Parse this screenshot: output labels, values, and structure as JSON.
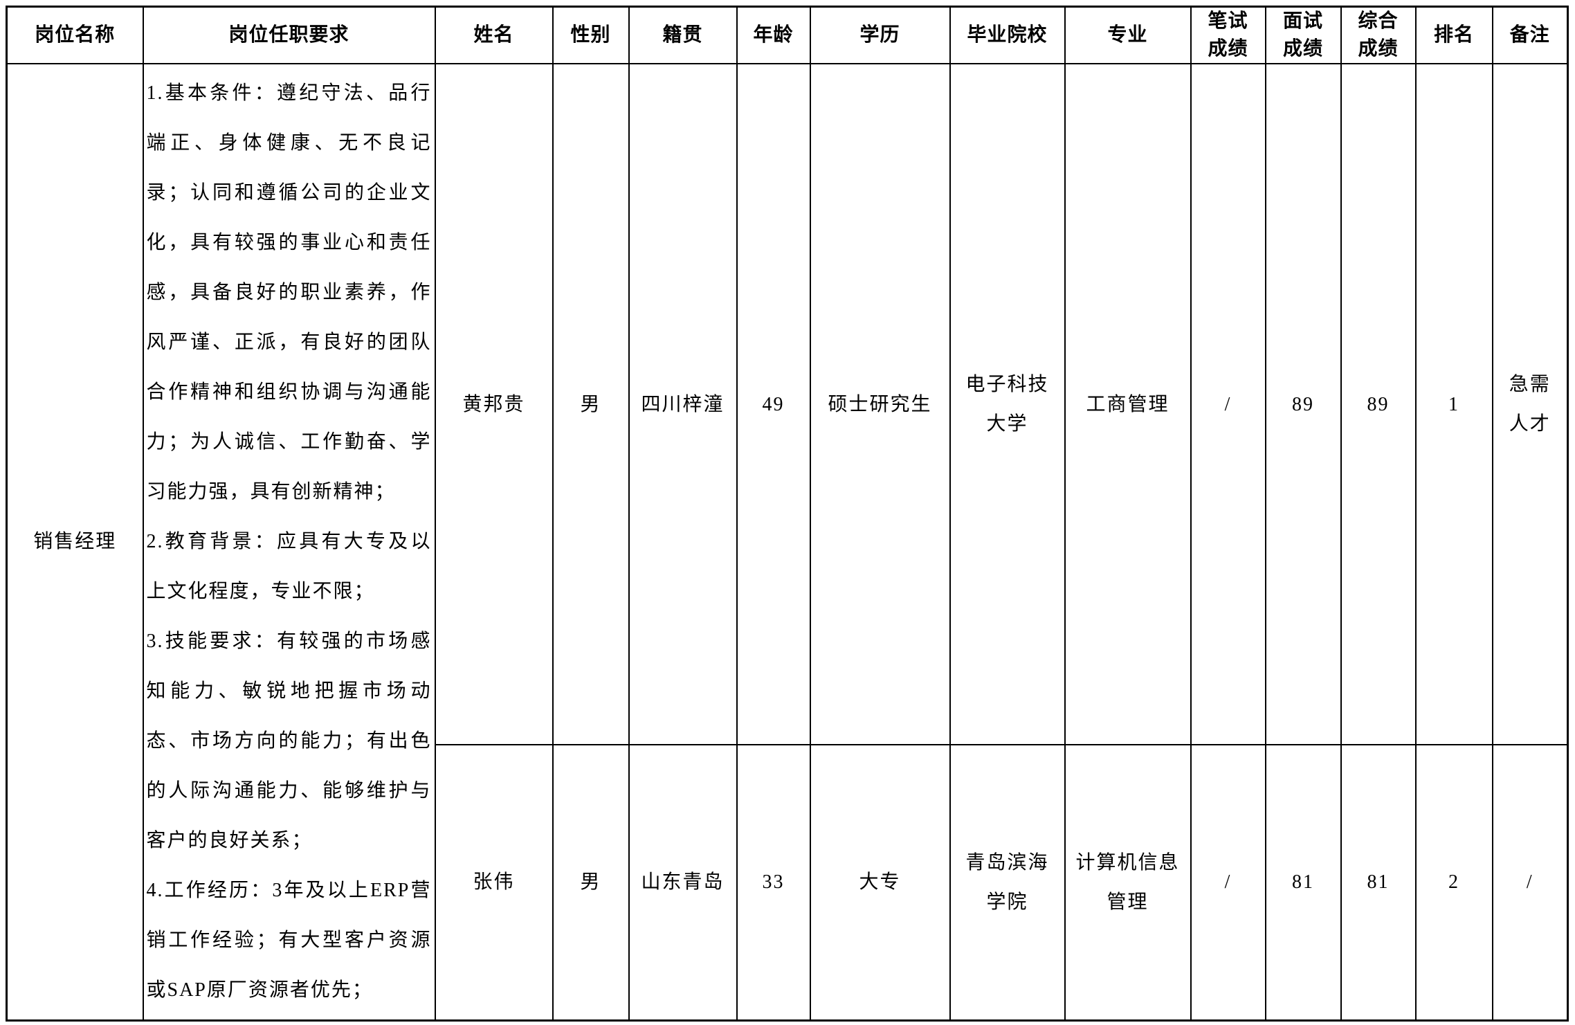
{
  "headers": [
    "岗位名称",
    "岗位任职要求",
    "姓名",
    "性别",
    "籍贯",
    "年龄",
    "学历",
    "毕业院校",
    "专业",
    "笔试\n成绩",
    "面试\n成绩",
    "综合\n成绩",
    "排名",
    "备注"
  ],
  "position": "销售经理",
  "requirements": {
    "lines": [
      {
        "text": "1.基本条件：遵纪守法、品行",
        "stretch": true
      },
      {
        "text": "端正、身体健康、无不良记",
        "stretch": true
      },
      {
        "text": "录；认同和遵循公司的企业文",
        "stretch": true
      },
      {
        "text": "化，具有较强的事业心和责任",
        "stretch": true
      },
      {
        "text": "感，具备良好的职业素养，作",
        "stretch": true
      },
      {
        "text": "风严谨、正派，有良好的团队",
        "stretch": true
      },
      {
        "text": "合作精神和组织协调与沟通能",
        "stretch": true
      },
      {
        "text": "力；为人诚信、工作勤奋、学",
        "stretch": true
      },
      {
        "text": "习能力强，具有创新精神；",
        "stretch": false
      },
      {
        "text": "2.教育背景：应具有大专及以",
        "stretch": true
      },
      {
        "text": "上文化程度，专业不限；",
        "stretch": false
      },
      {
        "text": "3.技能要求：有较强的市场感",
        "stretch": true
      },
      {
        "text": "知能力、敏锐地把握市场动",
        "stretch": true
      },
      {
        "text": "态、市场方向的能力；有出色",
        "stretch": true
      },
      {
        "text": "的人际沟通能力、能够维护与",
        "stretch": true
      },
      {
        "text": "客户的良好关系；",
        "stretch": false
      },
      {
        "text": "4.工作经历：3年及以上ERP营",
        "stretch": true
      },
      {
        "text": "销工作经验；有大型客户资源",
        "stretch": true
      },
      {
        "text": "或SAP原厂资源者优先；",
        "stretch": false
      }
    ]
  },
  "candidates": [
    {
      "name": "黄邦贵",
      "gender": "男",
      "native_place": "四川梓潼",
      "age": "49",
      "education": "硕士研究生",
      "school": "电子科技\n大学",
      "major": "工商管理",
      "written_score": "/",
      "interview_score": "89",
      "overall_score": "89",
      "rank": "1",
      "remark": "急需\n人才"
    },
    {
      "name": "张伟",
      "gender": "男",
      "native_place": "山东青岛",
      "age": "33",
      "education": "大专",
      "school": "青岛滨海\n学院",
      "major": "计算机信息\n管理",
      "written_score": "/",
      "interview_score": "81",
      "overall_score": "81",
      "rank": "2",
      "remark": "/"
    }
  ]
}
